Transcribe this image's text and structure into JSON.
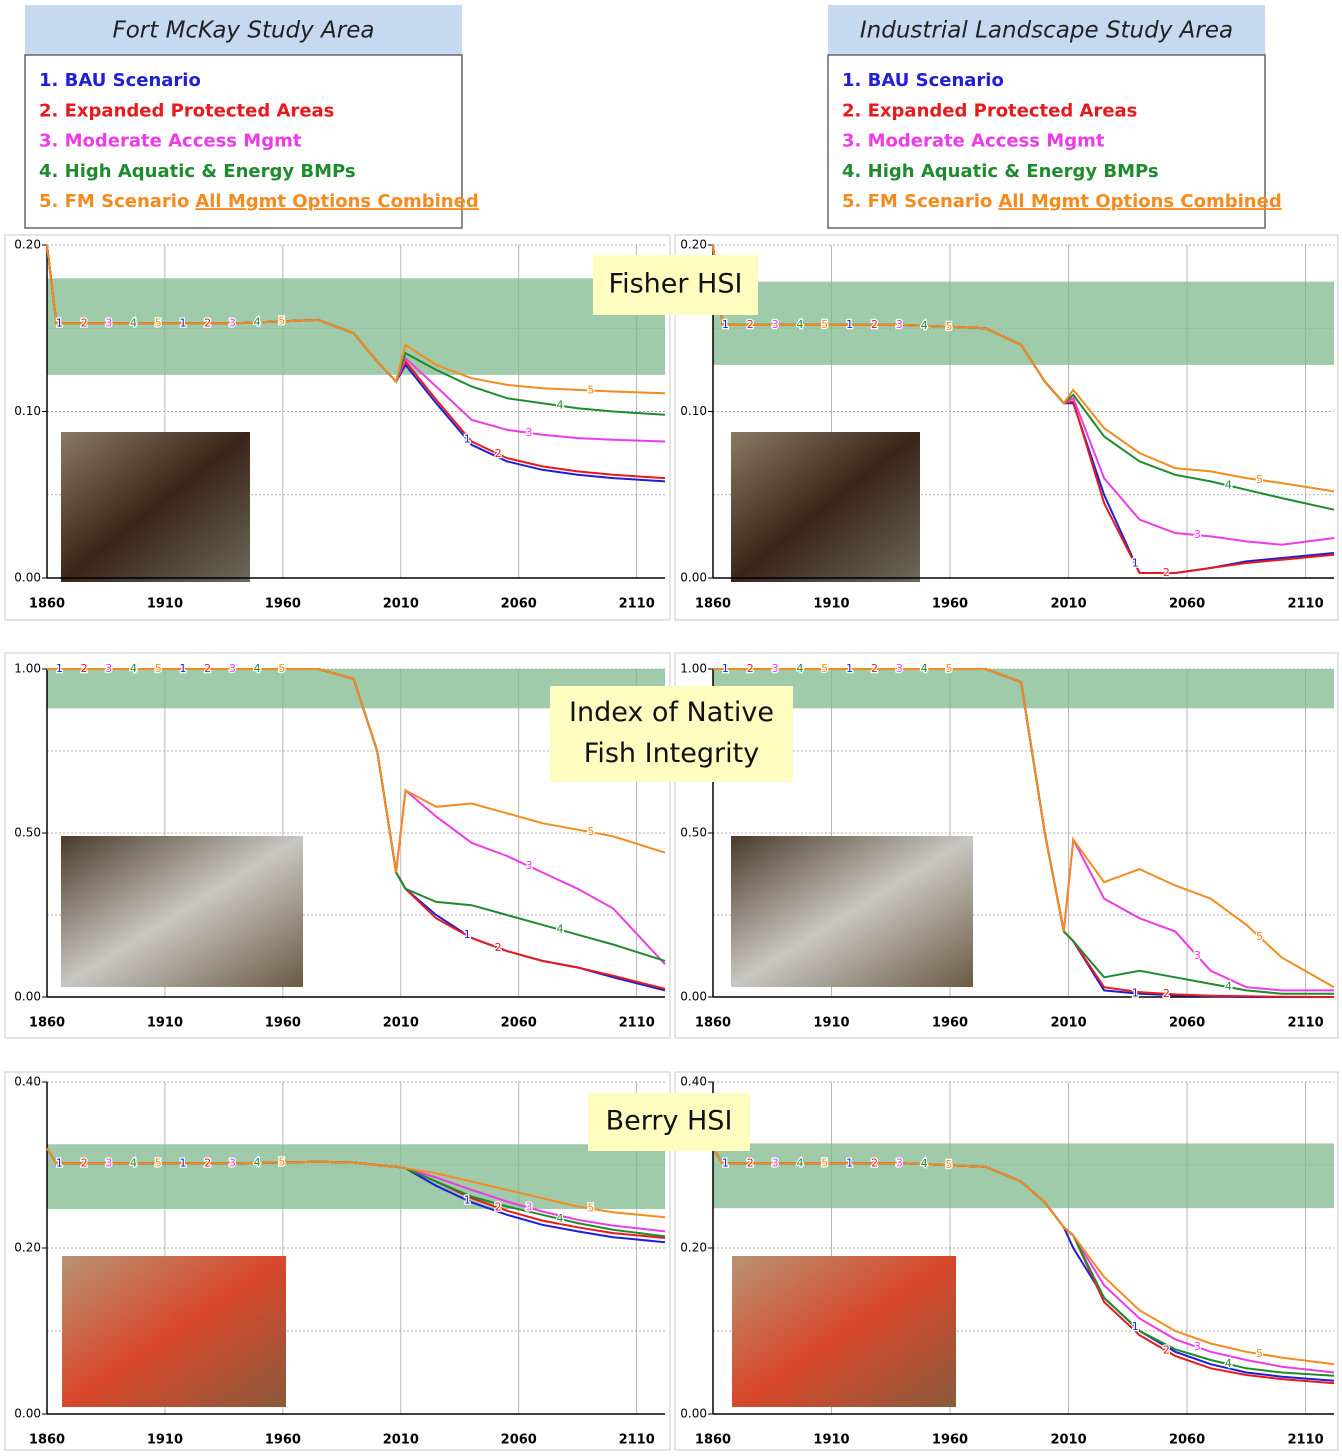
{
  "legends": [
    {
      "title": "Fort McKay Study Area",
      "items": [
        {
          "text": "1. BAU Scenario",
          "color": "#1f1fd6"
        },
        {
          "text": "2. Expanded Protected Areas",
          "color": "#e8191c"
        },
        {
          "text": "3. Moderate Access Mgmt",
          "color": "#ee3be8"
        },
        {
          "text": "4. High Aquatic & Energy BMPs",
          "color": "#1e8c2e"
        },
        {
          "text": "5. FM Scenario",
          "color": "#f58a1f"
        }
      ],
      "underlined_note": "All Mgmt Options Combined"
    },
    {
      "title": "Industrial Landscape  Study Area",
      "items": [
        {
          "text": "1. BAU Scenario",
          "color": "#1f1fd6"
        },
        {
          "text": "2. Expanded Protected Areas",
          "color": "#e8191c"
        },
        {
          "text": "3. Moderate Access Mgmt",
          "color": "#ee3be8"
        },
        {
          "text": "4. High Aquatic & Energy BMPs",
          "color": "#1e8c2e"
        },
        {
          "text": "5. FM Scenario",
          "color": "#f58a1f"
        }
      ],
      "underlined_note": "All Mgmt Options Combined"
    }
  ],
  "panel_labels": [
    [
      "Fisher HSI"
    ],
    [
      "Index of Native",
      "Fish Integrity"
    ],
    [
      "Berry HSI"
    ]
  ],
  "chart_data": [
    {
      "type": "line",
      "x": [
        1860,
        1864,
        1900,
        1940,
        1975,
        1990,
        2000,
        2008,
        2012,
        2025,
        2040,
        2055,
        2070,
        2085,
        2100,
        2122
      ],
      "xlim": [
        1860,
        2122
      ],
      "xticks": [
        1860,
        1910,
        1960,
        2010,
        2060,
        2110
      ],
      "ylim": [
        0,
        0.2
      ],
      "yticks": [
        {
          "value": 0,
          "label": "0.00"
        },
        {
          "value": 0.1,
          "label": "0.10"
        },
        {
          "value": 0.2,
          "label": "0.20"
        }
      ],
      "minor_yticks": [
        0.05,
        0.15
      ],
      "grid": true,
      "target_band": [
        0.122,
        0.18
      ],
      "series": [
        {
          "name": "1",
          "color": "#1f1fd6",
          "values": [
            0.2,
            0.153,
            0.153,
            0.153,
            0.155,
            0.147,
            0.13,
            0.118,
            0.128,
            0.105,
            0.08,
            0.07,
            0.065,
            0.062,
            0.06,
            0.058
          ]
        },
        {
          "name": "2",
          "color": "#e8191c",
          "values": [
            0.2,
            0.153,
            0.153,
            0.153,
            0.155,
            0.147,
            0.13,
            0.118,
            0.13,
            0.107,
            0.082,
            0.072,
            0.067,
            0.064,
            0.062,
            0.06
          ]
        },
        {
          "name": "3",
          "color": "#ee3be8",
          "values": [
            0.2,
            0.153,
            0.153,
            0.153,
            0.155,
            0.147,
            0.13,
            0.118,
            0.132,
            0.115,
            0.095,
            0.089,
            0.086,
            0.084,
            0.083,
            0.082
          ]
        },
        {
          "name": "4",
          "color": "#1e8c2e",
          "values": [
            0.2,
            0.153,
            0.153,
            0.153,
            0.155,
            0.147,
            0.13,
            0.118,
            0.135,
            0.125,
            0.115,
            0.108,
            0.105,
            0.102,
            0.1,
            0.098
          ]
        },
        {
          "name": "5",
          "color": "#f58a1f",
          "values": [
            0.2,
            0.153,
            0.153,
            0.153,
            0.155,
            0.147,
            0.13,
            0.118,
            0.14,
            0.128,
            0.12,
            0.116,
            0.114,
            0.113,
            0.112,
            0.111
          ]
        }
      ]
    },
    {
      "type": "line",
      "x": [
        1860,
        1864,
        1900,
        1940,
        1975,
        1990,
        2000,
        2008,
        2012,
        2025,
        2040,
        2055,
        2070,
        2085,
        2100,
        2122
      ],
      "xlim": [
        1860,
        2122
      ],
      "xticks": [
        1860,
        1910,
        1960,
        2010,
        2060,
        2110
      ],
      "ylim": [
        0,
        0.2
      ],
      "yticks": [
        {
          "value": 0,
          "label": "0.00"
        },
        {
          "value": 0.1,
          "label": "0.10"
        },
        {
          "value": 0.2,
          "label": "0.20"
        }
      ],
      "minor_yticks": [
        0.05,
        0.15
      ],
      "grid": true,
      "target_band": [
        0.128,
        0.178
      ],
      "series": [
        {
          "name": "1",
          "color": "#1f1fd6",
          "values": [
            0.2,
            0.152,
            0.152,
            0.152,
            0.15,
            0.14,
            0.118,
            0.105,
            0.105,
            0.05,
            0.003,
            0.003,
            0.006,
            0.01,
            0.012,
            0.015
          ]
        },
        {
          "name": "2",
          "color": "#e8191c",
          "values": [
            0.2,
            0.152,
            0.152,
            0.152,
            0.15,
            0.14,
            0.118,
            0.105,
            0.106,
            0.045,
            0.003,
            0.003,
            0.006,
            0.009,
            0.011,
            0.014
          ]
        },
        {
          "name": "3",
          "color": "#ee3be8",
          "values": [
            0.2,
            0.152,
            0.152,
            0.152,
            0.15,
            0.14,
            0.118,
            0.105,
            0.108,
            0.06,
            0.035,
            0.027,
            0.025,
            0.022,
            0.02,
            0.024
          ]
        },
        {
          "name": "4",
          "color": "#1e8c2e",
          "values": [
            0.2,
            0.152,
            0.152,
            0.152,
            0.15,
            0.14,
            0.118,
            0.105,
            0.11,
            0.085,
            0.07,
            0.062,
            0.058,
            0.053,
            0.048,
            0.041
          ]
        },
        {
          "name": "5",
          "color": "#f58a1f",
          "values": [
            0.2,
            0.152,
            0.152,
            0.152,
            0.15,
            0.14,
            0.118,
            0.105,
            0.113,
            0.09,
            0.075,
            0.066,
            0.064,
            0.06,
            0.057,
            0.052
          ]
        }
      ]
    },
    {
      "type": "line",
      "x": [
        1860,
        1864,
        1900,
        1940,
        1975,
        1990,
        2000,
        2008,
        2012,
        2025,
        2040,
        2055,
        2070,
        2085,
        2100,
        2122
      ],
      "xlim": [
        1860,
        2122
      ],
      "xticks": [
        1860,
        1910,
        1960,
        2010,
        2060,
        2110
      ],
      "ylim": [
        0,
        1
      ],
      "yticks": [
        {
          "value": 0,
          "label": "0.00"
        },
        {
          "value": 0.5,
          "label": "0.50"
        },
        {
          "value": 1,
          "label": "1.00"
        }
      ],
      "minor_yticks": [
        0.25,
        0.75
      ],
      "grid": true,
      "target_band": [
        0.88,
        1.0
      ],
      "series": [
        {
          "name": "1",
          "color": "#1f1fd6",
          "values": [
            1.0,
            1.0,
            1.0,
            1.0,
            1.0,
            0.97,
            0.75,
            0.38,
            0.33,
            0.25,
            0.18,
            0.14,
            0.11,
            0.09,
            0.06,
            0.02
          ]
        },
        {
          "name": "2",
          "color": "#e8191c",
          "values": [
            1.0,
            1.0,
            1.0,
            1.0,
            1.0,
            0.97,
            0.75,
            0.38,
            0.33,
            0.24,
            0.18,
            0.14,
            0.11,
            0.09,
            0.065,
            0.025
          ]
        },
        {
          "name": "3",
          "color": "#ee3be8",
          "values": [
            1.0,
            1.0,
            1.0,
            1.0,
            1.0,
            0.97,
            0.75,
            0.38,
            0.63,
            0.55,
            0.47,
            0.43,
            0.38,
            0.33,
            0.27,
            0.1
          ]
        },
        {
          "name": "4",
          "color": "#1e8c2e",
          "values": [
            1.0,
            1.0,
            1.0,
            1.0,
            1.0,
            0.97,
            0.75,
            0.38,
            0.33,
            0.29,
            0.28,
            0.25,
            0.22,
            0.19,
            0.16,
            0.11
          ]
        },
        {
          "name": "5",
          "color": "#f58a1f",
          "values": [
            1.0,
            1.0,
            1.0,
            1.0,
            1.0,
            0.97,
            0.75,
            0.38,
            0.63,
            0.58,
            0.59,
            0.56,
            0.53,
            0.51,
            0.49,
            0.44
          ]
        }
      ]
    },
    {
      "type": "line",
      "x": [
        1860,
        1864,
        1900,
        1940,
        1975,
        1990,
        2000,
        2008,
        2012,
        2025,
        2040,
        2055,
        2070,
        2085,
        2100,
        2122
      ],
      "xlim": [
        1860,
        2122
      ],
      "xticks": [
        1860,
        1910,
        1960,
        2010,
        2060,
        2110
      ],
      "ylim": [
        0,
        1
      ],
      "yticks": [
        {
          "value": 0,
          "label": "0.00"
        },
        {
          "value": 0.5,
          "label": "0.50"
        },
        {
          "value": 1,
          "label": "1.00"
        }
      ],
      "minor_yticks": [
        0.25,
        0.75
      ],
      "grid": true,
      "target_band": [
        0.88,
        1.0
      ],
      "series": [
        {
          "name": "1",
          "color": "#1f1fd6",
          "values": [
            1.0,
            1.0,
            1.0,
            1.0,
            1.0,
            0.96,
            0.5,
            0.2,
            0.17,
            0.02,
            0.01,
            0.005,
            0.002,
            0,
            0,
            0
          ]
        },
        {
          "name": "2",
          "color": "#e8191c",
          "values": [
            1.0,
            1.0,
            1.0,
            1.0,
            1.0,
            0.96,
            0.5,
            0.2,
            0.17,
            0.03,
            0.015,
            0.008,
            0.004,
            0.002,
            0.001,
            0
          ]
        },
        {
          "name": "3",
          "color": "#ee3be8",
          "values": [
            1.0,
            1.0,
            1.0,
            1.0,
            1.0,
            0.96,
            0.5,
            0.2,
            0.48,
            0.3,
            0.24,
            0.2,
            0.08,
            0.03,
            0.02,
            0.02
          ]
        },
        {
          "name": "4",
          "color": "#1e8c2e",
          "values": [
            1.0,
            1.0,
            1.0,
            1.0,
            1.0,
            0.96,
            0.5,
            0.2,
            0.17,
            0.06,
            0.08,
            0.06,
            0.04,
            0.02,
            0.01,
            0.01
          ]
        },
        {
          "name": "5",
          "color": "#f58a1f",
          "values": [
            1.0,
            1.0,
            1.0,
            1.0,
            1.0,
            0.96,
            0.5,
            0.2,
            0.48,
            0.35,
            0.39,
            0.34,
            0.3,
            0.22,
            0.12,
            0.03
          ]
        }
      ]
    },
    {
      "type": "line",
      "x": [
        1860,
        1864,
        1900,
        1940,
        1975,
        1990,
        2000,
        2008,
        2012,
        2025,
        2040,
        2055,
        2070,
        2085,
        2100,
        2122
      ],
      "xlim": [
        1860,
        2122
      ],
      "xticks": [
        1860,
        1910,
        1960,
        2010,
        2060,
        2110
      ],
      "ylim": [
        0,
        0.4
      ],
      "yticks": [
        {
          "value": 0,
          "label": "0.00"
        },
        {
          "value": 0.2,
          "label": "0.20"
        },
        {
          "value": 0.4,
          "label": "0.40"
        }
      ],
      "minor_yticks": [
        0.1,
        0.3
      ],
      "grid": true,
      "target_band": [
        0.247,
        0.325
      ],
      "series": [
        {
          "name": "1",
          "color": "#1f1fd6",
          "values": [
            0.32,
            0.302,
            0.302,
            0.302,
            0.304,
            0.303,
            0.3,
            0.298,
            0.296,
            0.275,
            0.255,
            0.24,
            0.228,
            0.22,
            0.213,
            0.207
          ]
        },
        {
          "name": "2",
          "color": "#e8191c",
          "values": [
            0.32,
            0.302,
            0.302,
            0.302,
            0.304,
            0.303,
            0.3,
            0.298,
            0.296,
            0.28,
            0.26,
            0.245,
            0.233,
            0.225,
            0.218,
            0.212
          ]
        },
        {
          "name": "3",
          "color": "#ee3be8",
          "values": [
            0.32,
            0.302,
            0.302,
            0.302,
            0.304,
            0.303,
            0.3,
            0.298,
            0.296,
            0.285,
            0.27,
            0.256,
            0.244,
            0.234,
            0.227,
            0.22
          ]
        },
        {
          "name": "4",
          "color": "#1e8c2e",
          "values": [
            0.32,
            0.302,
            0.302,
            0.302,
            0.304,
            0.303,
            0.3,
            0.298,
            0.296,
            0.28,
            0.262,
            0.25,
            0.24,
            0.23,
            0.222,
            0.214
          ]
        },
        {
          "name": "5",
          "color": "#f58a1f",
          "values": [
            0.32,
            0.302,
            0.302,
            0.302,
            0.304,
            0.303,
            0.3,
            0.298,
            0.296,
            0.29,
            0.28,
            0.27,
            0.26,
            0.25,
            0.243,
            0.237
          ]
        }
      ]
    },
    {
      "type": "line",
      "x": [
        1860,
        1864,
        1900,
        1940,
        1975,
        1990,
        2000,
        2008,
        2012,
        2025,
        2040,
        2055,
        2070,
        2085,
        2100,
        2122
      ],
      "xlim": [
        1860,
        2122
      ],
      "xticks": [
        1860,
        1910,
        1960,
        2010,
        2060,
        2110
      ],
      "ylim": [
        0,
        0.4
      ],
      "yticks": [
        {
          "value": 0,
          "label": "0.00"
        },
        {
          "value": 0.2,
          "label": "0.20"
        },
        {
          "value": 0.4,
          "label": "0.40"
        }
      ],
      "minor_yticks": [
        0.1,
        0.3
      ],
      "grid": true,
      "target_band": [
        0.248,
        0.326
      ],
      "series": [
        {
          "name": "1",
          "color": "#1f1fd6",
          "values": [
            0.32,
            0.302,
            0.302,
            0.302,
            0.298,
            0.28,
            0.255,
            0.225,
            0.2,
            0.14,
            0.1,
            0.075,
            0.06,
            0.05,
            0.045,
            0.04
          ]
        },
        {
          "name": "2",
          "color": "#e8191c",
          "values": [
            0.32,
            0.302,
            0.302,
            0.302,
            0.298,
            0.28,
            0.255,
            0.225,
            0.215,
            0.135,
            0.095,
            0.07,
            0.055,
            0.047,
            0.042,
            0.037
          ]
        },
        {
          "name": "3",
          "color": "#ee3be8",
          "values": [
            0.32,
            0.302,
            0.302,
            0.302,
            0.298,
            0.28,
            0.255,
            0.225,
            0.215,
            0.155,
            0.115,
            0.09,
            0.075,
            0.065,
            0.057,
            0.05
          ]
        },
        {
          "name": "4",
          "color": "#1e8c2e",
          "values": [
            0.32,
            0.302,
            0.302,
            0.302,
            0.298,
            0.28,
            0.255,
            0.225,
            0.215,
            0.14,
            0.1,
            0.078,
            0.065,
            0.055,
            0.05,
            0.046
          ]
        },
        {
          "name": "5",
          "color": "#f58a1f",
          "values": [
            0.32,
            0.302,
            0.302,
            0.302,
            0.298,
            0.28,
            0.255,
            0.225,
            0.215,
            0.165,
            0.125,
            0.1,
            0.085,
            0.075,
            0.068,
            0.06
          ]
        }
      ]
    }
  ]
}
